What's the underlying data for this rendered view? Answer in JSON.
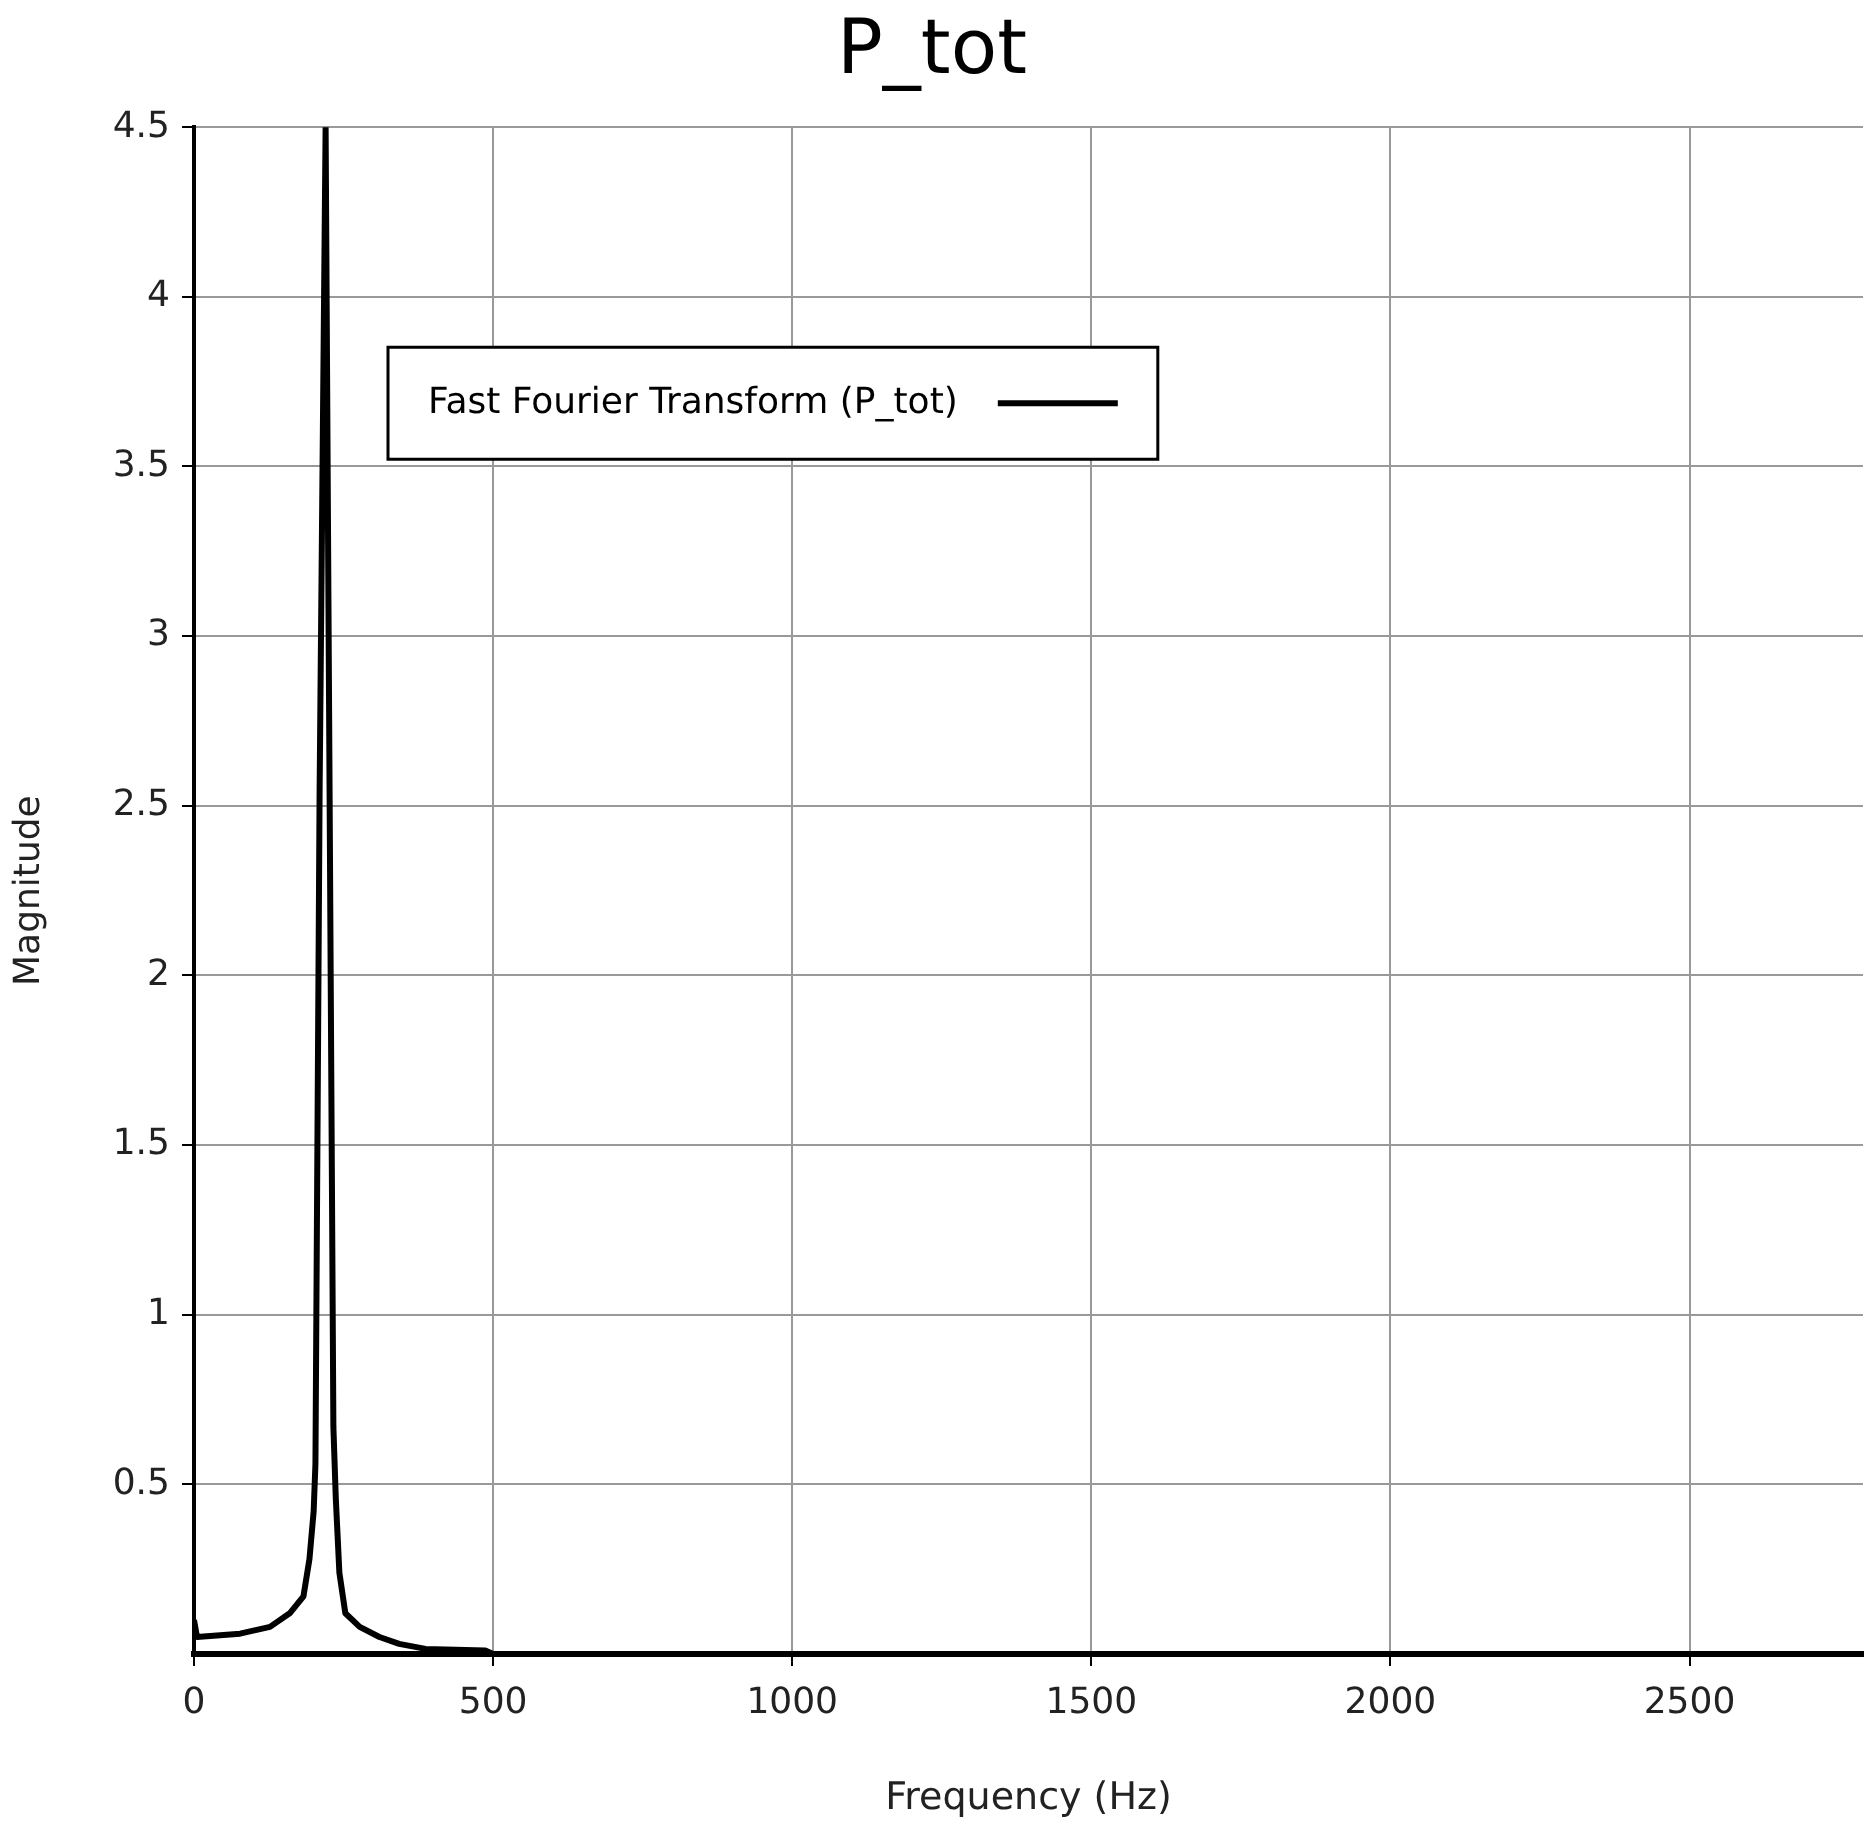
{
  "chart_data": {
    "type": "line",
    "title": "P_tot",
    "xlabel": "Frequency (Hz)",
    "ylabel": "Magnitude",
    "xlim": [
      0,
      2790
    ],
    "ylim": [
      0,
      4.5
    ],
    "xticks": [
      0,
      500,
      1000,
      1500,
      2000,
      2500
    ],
    "yticks": [
      0.5,
      1,
      1.5,
      2,
      2.5,
      3,
      3.5,
      4,
      4.5
    ],
    "grid": true,
    "legend": "top left",
    "marker": "none",
    "line_style": "solid",
    "series": [
      {
        "name": "Fast Fourier Transform (P_tot)",
        "color": "#000000",
        "x": [
          0,
          5,
          77,
          127,
          160,
          183,
          193,
          200,
          203,
          210,
          220,
          233,
          237,
          243,
          253,
          277,
          310,
          343,
          387,
          487,
          500,
          2790
        ],
        "values": [
          0.1,
          0.05,
          0.06,
          0.08,
          0.12,
          0.17,
          0.28,
          0.42,
          0.56,
          2.55,
          4.5,
          0.67,
          0.46,
          0.24,
          0.12,
          0.08,
          0.05,
          0.03,
          0.015,
          0.01,
          0,
          0
        ]
      }
    ]
  }
}
